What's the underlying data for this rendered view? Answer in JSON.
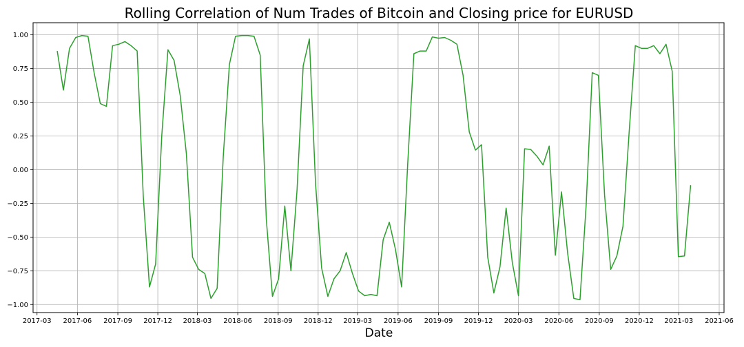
{
  "chart_data": {
    "type": "line",
    "title": "Rolling Correlation of Num Trades of Bitcoin and Closing price for EURUSD",
    "xlabel": "Date",
    "ylabel": "",
    "grid": true,
    "line_color": "#2ca02c",
    "xlim": [
      "2017-02-20",
      "2021-06-12"
    ],
    "ylim": [
      -1.06,
      1.09
    ],
    "x_ticks": [
      "2017-03",
      "2017-06",
      "2017-09",
      "2017-12",
      "2018-03",
      "2018-06",
      "2018-09",
      "2018-12",
      "2019-03",
      "2019-06",
      "2019-09",
      "2019-12",
      "2020-03",
      "2020-06",
      "2020-09",
      "2020-12",
      "2021-03",
      "2021-06"
    ],
    "y_ticks": [
      "1.00",
      "0.75",
      "0.50",
      "0.25",
      "0.00",
      "−0.25",
      "−0.50",
      "−0.75",
      "−1.00"
    ],
    "series": [
      {
        "x": [
          "2017-04-16",
          "2017-04-30",
          "2017-05-14",
          "2017-05-28",
          "2017-06-11",
          "2017-06-25",
          "2017-07-09",
          "2017-07-23",
          "2017-08-06",
          "2017-08-20",
          "2017-09-03",
          "2017-09-17",
          "2017-10-01",
          "2017-10-15",
          "2017-10-29",
          "2017-11-12",
          "2017-11-26",
          "2017-12-10",
          "2017-12-24",
          "2018-01-07",
          "2018-01-21",
          "2018-02-04",
          "2018-02-18",
          "2018-03-04",
          "2018-03-18",
          "2018-04-01",
          "2018-04-15",
          "2018-04-29",
          "2018-05-13",
          "2018-05-27",
          "2018-06-10",
          "2018-06-24",
          "2018-07-08",
          "2018-07-22",
          "2018-08-05",
          "2018-08-19",
          "2018-09-02",
          "2018-09-16",
          "2018-09-30",
          "2018-10-14",
          "2018-10-28",
          "2018-11-11",
          "2018-11-25",
          "2018-12-09",
          "2018-12-23",
          "2019-01-06",
          "2019-01-20",
          "2019-02-03",
          "2019-02-17",
          "2019-03-03",
          "2019-03-17",
          "2019-03-31",
          "2019-04-14",
          "2019-04-28",
          "2019-05-12",
          "2019-05-26",
          "2019-06-09",
          "2019-06-23",
          "2019-07-07",
          "2019-07-21",
          "2019-08-04",
          "2019-08-18",
          "2019-09-01",
          "2019-09-15",
          "2019-09-29",
          "2019-10-13",
          "2019-10-27",
          "2019-11-10",
          "2019-11-24",
          "2019-12-08",
          "2019-12-22",
          "2020-01-05",
          "2020-01-19",
          "2020-02-02",
          "2020-02-16",
          "2020-03-01",
          "2020-03-15",
          "2020-03-29",
          "2020-04-12",
          "2020-04-26",
          "2020-05-10",
          "2020-05-24",
          "2020-06-07",
          "2020-06-21",
          "2020-07-05",
          "2020-07-19",
          "2020-08-02",
          "2020-08-16",
          "2020-08-30",
          "2020-09-13",
          "2020-09-27",
          "2020-10-11",
          "2020-10-25",
          "2020-11-08",
          "2020-11-22",
          "2020-12-06",
          "2020-12-20",
          "2021-01-03",
          "2021-01-17",
          "2021-01-31",
          "2021-02-14",
          "2021-02-28",
          "2021-03-14",
          "2021-03-28"
        ],
        "y": [
          0.88,
          0.59,
          0.9,
          0.98,
          0.995,
          0.99,
          0.72,
          0.49,
          0.47,
          0.92,
          0.93,
          0.95,
          0.92,
          0.88,
          -0.2,
          -0.87,
          -0.7,
          0.25,
          0.89,
          0.81,
          0.55,
          0.12,
          -0.65,
          -0.74,
          -0.77,
          -0.955,
          -0.88,
          0.1,
          0.78,
          0.99,
          0.995,
          0.995,
          0.99,
          0.85,
          -0.37,
          -0.94,
          -0.81,
          -0.27,
          -0.75,
          -0.15,
          0.77,
          0.97,
          -0.1,
          -0.73,
          -0.94,
          -0.81,
          -0.75,
          -0.615,
          -0.77,
          -0.9,
          -0.935,
          -0.925,
          -0.935,
          -0.52,
          -0.39,
          -0.59,
          -0.87,
          0.05,
          0.86,
          0.88,
          0.88,
          0.985,
          0.975,
          0.98,
          0.96,
          0.93,
          0.7,
          0.28,
          0.145,
          0.185,
          -0.65,
          -0.915,
          -0.72,
          -0.285,
          -0.69,
          -0.935,
          0.155,
          0.15,
          0.1,
          0.035,
          0.175,
          -0.635,
          -0.165,
          -0.62,
          -0.955,
          -0.965,
          -0.27,
          0.72,
          0.7,
          -0.19,
          -0.74,
          -0.64,
          -0.42,
          0.28,
          0.92,
          0.9,
          0.9,
          0.92,
          0.86,
          0.93,
          0.73,
          -0.645,
          -0.64,
          -0.115
        ]
      }
    ]
  }
}
